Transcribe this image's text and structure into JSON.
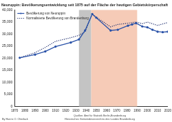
{
  "chart_data": {
    "type": "line",
    "title": "Neuruppin: Bevölkerungsentwicklung seit 1875 auf der Fläche der heutigen Gebietskörperschaft",
    "x": [
      1875,
      1890,
      1900,
      1910,
      1925,
      1933,
      1939,
      1946,
      1950,
      1964,
      1971,
      1981,
      1985,
      1989,
      1995,
      2000,
      2005,
      2010,
      2015,
      2020
    ],
    "series": [
      {
        "name": "Bevölkerung von Neuruppin",
        "color": "#2a52a8",
        "marker": "circle",
        "line_style": "solid",
        "values": [
          20200,
          21500,
          22800,
          24800,
          26500,
          27800,
          31500,
          38300,
          36800,
          31500,
          31800,
          33500,
          34000,
          34500,
          33200,
          32800,
          31800,
          31000,
          30800,
          31000
        ]
      },
      {
        "name": "Normalisierte Bevölkerung von Brandenburg",
        "color": "#1a2a6c",
        "marker": "none",
        "line_style": "dotted",
        "values": [
          20200,
          22300,
          24500,
          27000,
          28500,
          29500,
          31000,
          38300,
          37000,
          33000,
          34000,
          34500,
          34800,
          35000,
          34300,
          35000,
          34300,
          33600,
          34200,
          34800
        ]
      }
    ],
    "xlim": [
      1870,
      2020
    ],
    "xticks": [
      1870,
      1880,
      1890,
      1900,
      1910,
      1920,
      1930,
      1940,
      1950,
      1960,
      1970,
      1980,
      1990,
      2000,
      2010,
      2020
    ],
    "ylim": [
      0,
      40000
    ],
    "yticks": [
      0,
      {
        "value": 5000,
        "label": "5,000"
      },
      {
        "value": 10000,
        "label": "10,000"
      },
      {
        "value": 15000,
        "label": "15,000"
      },
      {
        "value": 20000,
        "label": "20,000"
      },
      {
        "value": 25000,
        "label": "25,000"
      },
      {
        "value": 30000,
        "label": "30,000"
      },
      {
        "value": 35000,
        "label": "35,000"
      },
      {
        "value": 40000,
        "label": "40,000"
      }
    ],
    "grid": false,
    "legend": "top-left",
    "shaded_periods": [
      {
        "from": 1933,
        "to": 1945,
        "color": "#c4c4c4"
      },
      {
        "from": 1945,
        "to": 1990,
        "color": "#f6cbb7"
      }
    ],
    "source_lines": [
      "Quellen: Amt für Statistik Berlin-Brandenburg",
      "Historisches Gemeindeverzeichnis des Landes Brandenburg"
    ],
    "author": "By Hanns O. Oberlack"
  }
}
